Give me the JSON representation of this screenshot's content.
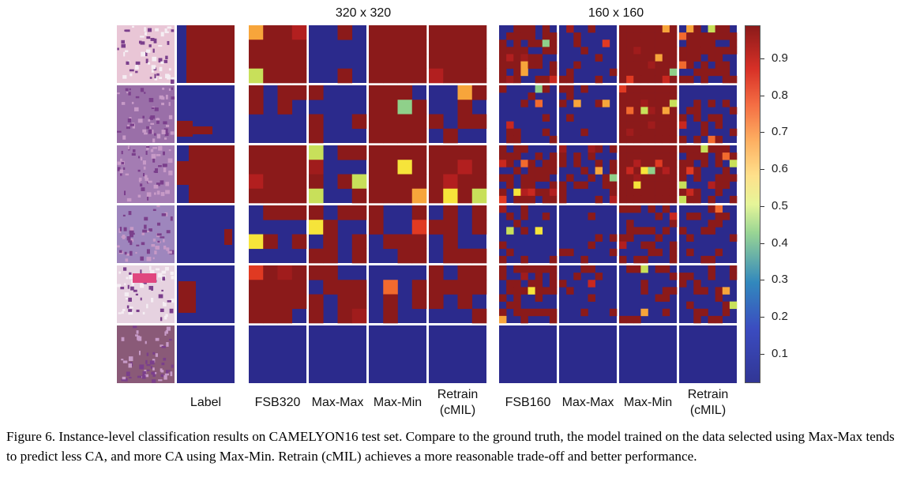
{
  "figure": {
    "group_titles": [
      "320 x 320",
      "160 x 160"
    ],
    "column_labels": [
      {
        "line1": "Label",
        "line2": ""
      },
      {
        "line1": "FSB320",
        "line2": ""
      },
      {
        "line1": "Max-Max",
        "line2": ""
      },
      {
        "line1": "Max-Min",
        "line2": ""
      },
      {
        "line1": "Retrain",
        "line2": "(cMIL)"
      },
      {
        "line1": "FSB160",
        "line2": ""
      },
      {
        "line1": "Max-Max",
        "line2": ""
      },
      {
        "line1": "Max-Min",
        "line2": ""
      },
      {
        "line1": "Retrain",
        "line2": "(cMIL)"
      }
    ],
    "colorbar": {
      "ticks": [
        "0.9",
        "0.8",
        "0.7",
        "0.6",
        "0.5",
        "0.4",
        "0.3",
        "0.2",
        "0.1"
      ],
      "colors": {
        "low": "#2b2a8c",
        "high": "#8b1a1a"
      }
    },
    "rows": 6
  },
  "caption": {
    "label": "Figure 6.",
    "text": "Instance-level classification results on CAMELYON16 test set.  Compare to the ground truth, the model trained on the data selected using Max-Max tends to predict less CA, and more CA using Max-Min. Retrain (cMIL) achieves a more reasonable trade-off and better performance."
  }
}
